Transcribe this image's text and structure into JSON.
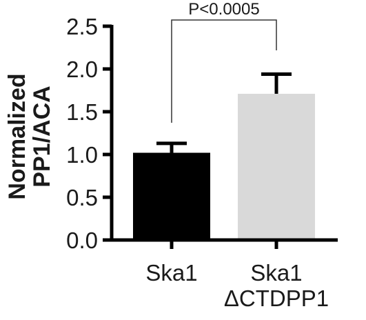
{
  "chart_data": {
    "type": "bar",
    "title": "",
    "xlabel": "",
    "ylabel_lines": [
      "Normalized",
      "PP1/ACA"
    ],
    "ylim": [
      0,
      2.5
    ],
    "yticks": [
      0.0,
      0.5,
      1.0,
      1.5,
      2.0,
      2.5
    ],
    "ytick_labels": [
      "0.0",
      "0.5",
      "1.0",
      "1.5",
      "2.0",
      "2.5"
    ],
    "categories": [
      {
        "lines": [
          "Ska1"
        ],
        "value": 1.02,
        "error": 0.11,
        "color": "#000000"
      },
      {
        "lines": [
          "Ska1",
          "ΔCTDPP1"
        ],
        "value": 1.71,
        "error": 0.23,
        "color": "#d9d9d9"
      }
    ],
    "annotation": {
      "text": "P<0.0005"
    }
  }
}
